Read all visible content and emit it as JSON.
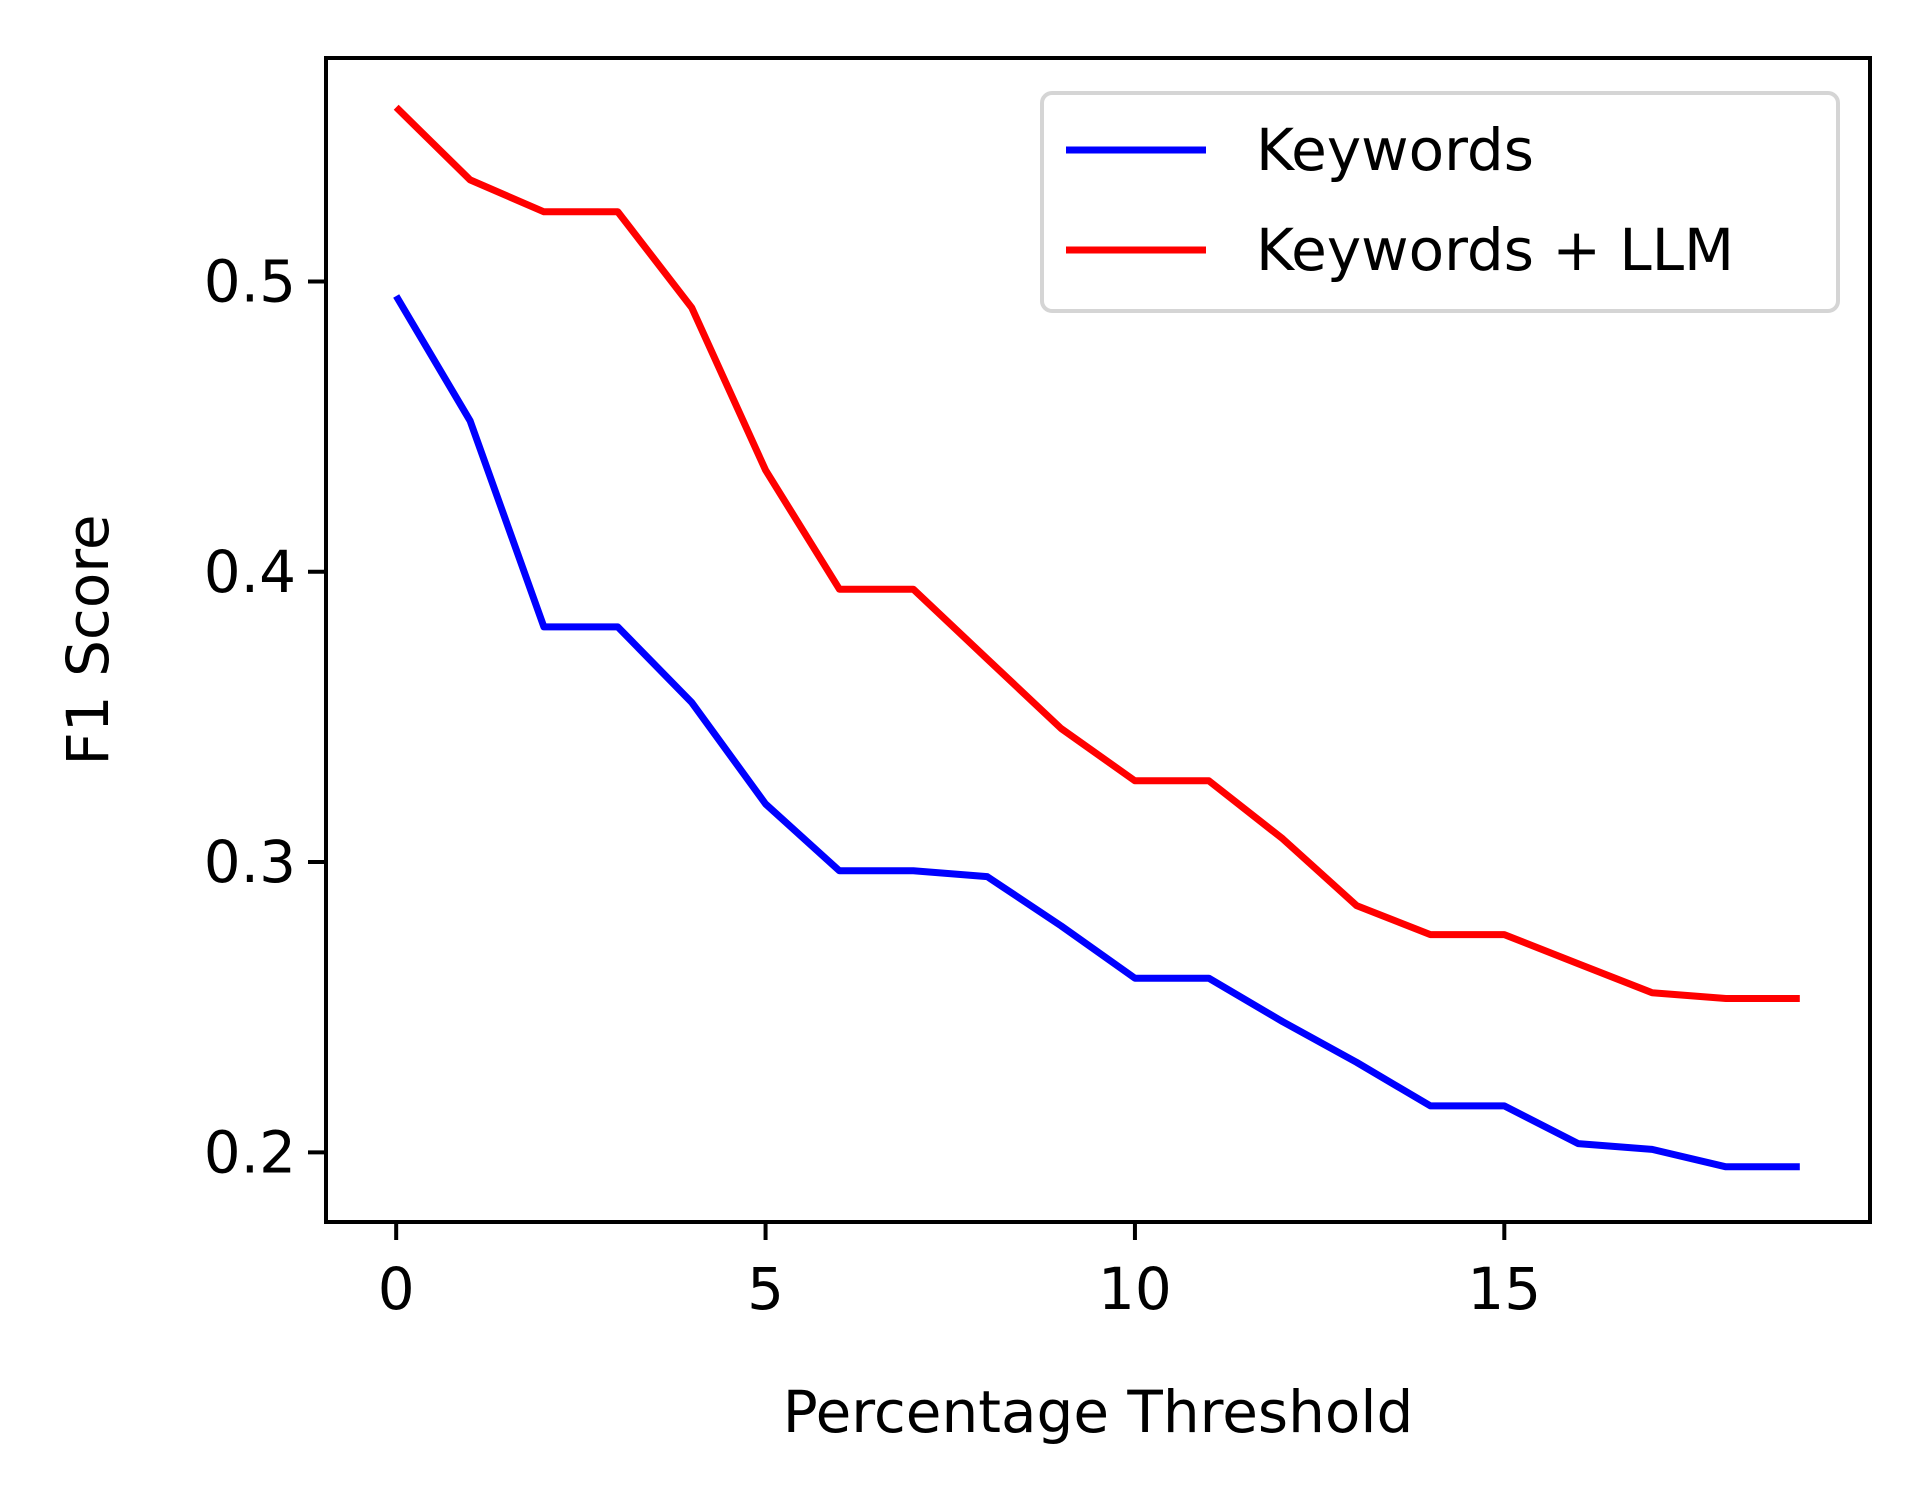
{
  "chart_data": {
    "type": "line",
    "xlabel": "Percentage Threshold",
    "ylabel": "F1 Score",
    "xlim": [
      -0.95,
      19.95
    ],
    "ylim": [
      0.176,
      0.577
    ],
    "xticks": [
      0,
      5,
      10,
      15
    ],
    "xtick_labels": [
      "0",
      "5",
      "10",
      "15"
    ],
    "yticks": [
      0.2,
      0.3,
      0.4,
      0.5
    ],
    "ytick_labels": [
      "0.2",
      "0.3",
      "0.4",
      "0.5"
    ],
    "grid": false,
    "legend": {
      "placement": "upper right"
    },
    "x": [
      0,
      1,
      2,
      3,
      4,
      5,
      6,
      7,
      8,
      9,
      10,
      11,
      12,
      13,
      14,
      15,
      16,
      17,
      18,
      19
    ],
    "series": [
      {
        "name": "Keywords",
        "color": "#0000ff",
        "values": [
          0.495,
          0.452,
          0.381,
          0.381,
          0.355,
          0.32,
          0.297,
          0.297,
          0.295,
          0.278,
          0.26,
          0.26,
          0.245,
          0.231,
          0.216,
          0.216,
          0.203,
          0.201,
          0.195,
          0.195
        ]
      },
      {
        "name": "Keywords + LLM",
        "color": "#ff0000",
        "values": [
          0.56,
          0.535,
          0.524,
          0.524,
          0.491,
          0.435,
          0.394,
          0.394,
          0.37,
          0.346,
          0.328,
          0.328,
          0.308,
          0.285,
          0.275,
          0.275,
          0.265,
          0.255,
          0.253,
          0.253
        ]
      }
    ]
  }
}
